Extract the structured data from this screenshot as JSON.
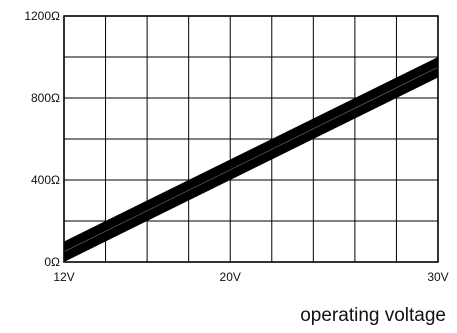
{
  "chart_data": {
    "type": "area",
    "title": "",
    "xlabel": "operating voltage",
    "ylabel": "",
    "xlim": [
      12,
      30
    ],
    "ylim": [
      0,
      1200
    ],
    "x_tick_values": [
      12,
      20,
      30
    ],
    "x_tick_labels": [
      "12V",
      "20V",
      "30V"
    ],
    "y_tick_values": [
      0,
      400,
      800,
      1200
    ],
    "y_tick_labels": [
      "0Ω",
      "400Ω",
      "800Ω",
      "1200Ω"
    ],
    "x_grid_lines": 9,
    "y_grid_lines": 6,
    "grid": true,
    "series": [
      {
        "color": "#000000",
        "x": [
          12,
          30
        ],
        "lower": [
          0,
          900
        ],
        "upper": [
          100,
          1000
        ]
      }
    ]
  }
}
